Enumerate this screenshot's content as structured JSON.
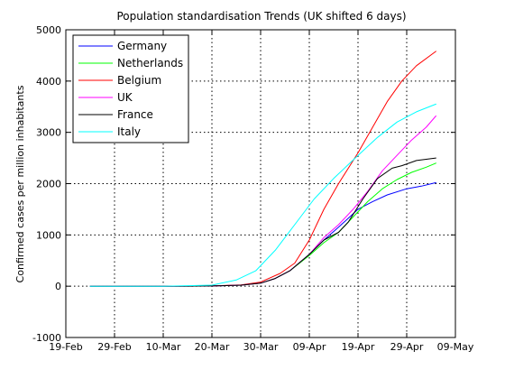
{
  "chart_data": {
    "type": "line",
    "title": "Population standardisation Trends (UK shifted 6 days)",
    "xlabel": "",
    "ylabel": "Confirmed cases per million inhabitants",
    "x_range": [
      "2020-02-19",
      "2020-05-09"
    ],
    "ylim": [
      -1000,
      5000
    ],
    "x_ticks": [
      {
        "date": "2020-02-19",
        "label": "19-Feb"
      },
      {
        "date": "2020-02-29",
        "label": "29-Feb"
      },
      {
        "date": "2020-03-10",
        "label": "10-Mar"
      },
      {
        "date": "2020-03-20",
        "label": "20-Mar"
      },
      {
        "date": "2020-03-30",
        "label": "30-Mar"
      },
      {
        "date": "2020-04-09",
        "label": "09-Apr"
      },
      {
        "date": "2020-04-19",
        "label": "19-Apr"
      },
      {
        "date": "2020-04-29",
        "label": "29-Apr"
      },
      {
        "date": "2020-05-09",
        "label": "09-May"
      }
    ],
    "y_ticks": [
      -1000,
      0,
      1000,
      2000,
      3000,
      4000,
      5000
    ],
    "grid": true,
    "legend_position": "top-left",
    "series": [
      {
        "name": "Germany",
        "color": "#0000ff",
        "points": [
          [
            "2020-02-24",
            0
          ],
          [
            "2020-03-10",
            0
          ],
          [
            "2020-03-20",
            5
          ],
          [
            "2020-03-26",
            20
          ],
          [
            "2020-03-30",
            60
          ],
          [
            "2020-04-02",
            150
          ],
          [
            "2020-04-05",
            300
          ],
          [
            "2020-04-09",
            620
          ],
          [
            "2020-04-12",
            900
          ],
          [
            "2020-04-15",
            1150
          ],
          [
            "2020-04-19",
            1500
          ],
          [
            "2020-04-22",
            1650
          ],
          [
            "2020-04-25",
            1780
          ],
          [
            "2020-04-29",
            1900
          ],
          [
            "2020-05-02",
            1950
          ],
          [
            "2020-05-05",
            2020
          ]
        ]
      },
      {
        "name": "Netherlands",
        "color": "#00ff00",
        "points": [
          [
            "2020-02-24",
            0
          ],
          [
            "2020-03-10",
            0
          ],
          [
            "2020-03-20",
            5
          ],
          [
            "2020-03-26",
            20
          ],
          [
            "2020-03-30",
            60
          ],
          [
            "2020-04-02",
            150
          ],
          [
            "2020-04-05",
            300
          ],
          [
            "2020-04-09",
            600
          ],
          [
            "2020-04-12",
            850
          ],
          [
            "2020-04-15",
            1050
          ],
          [
            "2020-04-18",
            1350
          ],
          [
            "2020-04-21",
            1650
          ],
          [
            "2020-04-24",
            1900
          ],
          [
            "2020-04-27",
            2080
          ],
          [
            "2020-04-30",
            2220
          ],
          [
            "2020-05-03",
            2320
          ],
          [
            "2020-05-05",
            2400
          ]
        ]
      },
      {
        "name": "Belgium",
        "color": "#ff0000",
        "points": [
          [
            "2020-02-24",
            0
          ],
          [
            "2020-03-10",
            0
          ],
          [
            "2020-03-20",
            5
          ],
          [
            "2020-03-26",
            25
          ],
          [
            "2020-03-30",
            80
          ],
          [
            "2020-04-03",
            250
          ],
          [
            "2020-04-06",
            450
          ],
          [
            "2020-04-09",
            900
          ],
          [
            "2020-04-12",
            1500
          ],
          [
            "2020-04-15",
            2000
          ],
          [
            "2020-04-19",
            2600
          ],
          [
            "2020-04-22",
            3100
          ],
          [
            "2020-04-25",
            3600
          ],
          [
            "2020-04-28",
            4000
          ],
          [
            "2020-05-01",
            4300
          ],
          [
            "2020-05-05",
            4580
          ]
        ]
      },
      {
        "name": "UK",
        "color": "#ff00ff",
        "points": [
          [
            "2020-02-24",
            0
          ],
          [
            "2020-03-10",
            0
          ],
          [
            "2020-03-20",
            5
          ],
          [
            "2020-03-26",
            20
          ],
          [
            "2020-03-30",
            60
          ],
          [
            "2020-04-02",
            150
          ],
          [
            "2020-04-05",
            300
          ],
          [
            "2020-04-09",
            620
          ],
          [
            "2020-04-12",
            950
          ],
          [
            "2020-04-15",
            1200
          ],
          [
            "2020-04-18",
            1500
          ],
          [
            "2020-04-21",
            1850
          ],
          [
            "2020-04-24",
            2250
          ],
          [
            "2020-04-27",
            2550
          ],
          [
            "2020-04-30",
            2850
          ],
          [
            "2020-05-03",
            3100
          ],
          [
            "2020-05-05",
            3320
          ]
        ]
      },
      {
        "name": "France",
        "color": "#000000",
        "points": [
          [
            "2020-02-24",
            0
          ],
          [
            "2020-03-10",
            0
          ],
          [
            "2020-03-20",
            5
          ],
          [
            "2020-03-26",
            20
          ],
          [
            "2020-03-30",
            60
          ],
          [
            "2020-04-02",
            150
          ],
          [
            "2020-04-05",
            300
          ],
          [
            "2020-04-09",
            620
          ],
          [
            "2020-04-12",
            900
          ],
          [
            "2020-04-15",
            1050
          ],
          [
            "2020-04-17",
            1250
          ],
          [
            "2020-04-20",
            1700
          ],
          [
            "2020-04-23",
            2100
          ],
          [
            "2020-04-26",
            2300
          ],
          [
            "2020-04-28",
            2350
          ],
          [
            "2020-05-01",
            2450
          ],
          [
            "2020-05-05",
            2500
          ]
        ]
      },
      {
        "name": "Italy",
        "color": "#00ffff",
        "points": [
          [
            "2020-02-24",
            0
          ],
          [
            "2020-03-10",
            0
          ],
          [
            "2020-03-20",
            20
          ],
          [
            "2020-03-25",
            120
          ],
          [
            "2020-03-29",
            300
          ],
          [
            "2020-04-02",
            700
          ],
          [
            "2020-04-06",
            1200
          ],
          [
            "2020-04-10",
            1700
          ],
          [
            "2020-04-14",
            2100
          ],
          [
            "2020-04-19",
            2550
          ],
          [
            "2020-04-23",
            2900
          ],
          [
            "2020-04-27",
            3200
          ],
          [
            "2020-05-01",
            3400
          ],
          [
            "2020-05-05",
            3550
          ]
        ]
      }
    ]
  }
}
